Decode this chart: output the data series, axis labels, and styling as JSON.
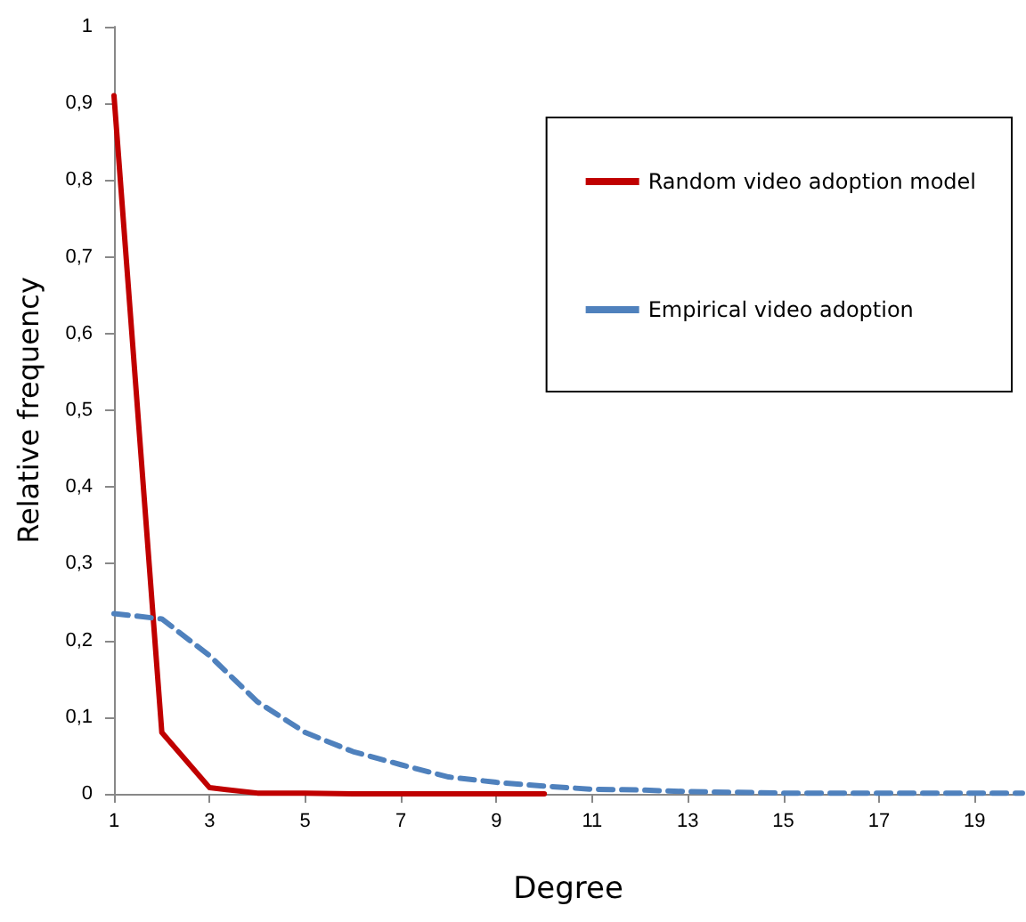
{
  "chart_data": {
    "type": "line",
    "xlabel": "Degree",
    "ylabel": "Relative frequency",
    "xlim": [
      1,
      20
    ],
    "xticks": [
      1,
      3,
      5,
      7,
      9,
      11,
      13,
      15,
      17,
      19
    ],
    "ylim": [
      0,
      1
    ],
    "yticks": [
      0,
      {
        "value": 0.1,
        "label": "0,1"
      },
      {
        "value": 0.2,
        "label": "0,2"
      },
      {
        "value": 0.3,
        "label": "0,3"
      },
      {
        "value": 0.4,
        "label": "0,4"
      },
      {
        "value": 0.5,
        "label": "0,5"
      },
      {
        "value": 0.6,
        "label": "0,6"
      },
      {
        "value": 0.7,
        "label": "0,7"
      },
      {
        "value": 0.8,
        "label": "0,8"
      },
      {
        "value": 0.9,
        "label": "0,9"
      },
      1
    ],
    "grid": false,
    "legend": "top right",
    "marker": "none",
    "series": [
      {
        "name": "Random video adoption model",
        "color": "#c00000",
        "line_style": "solid",
        "x": [
          1,
          2,
          3,
          4,
          5,
          6,
          7,
          8,
          9,
          10
        ],
        "values": [
          0.91,
          0.08,
          0.008,
          0.001,
          0.001,
          0,
          0,
          0,
          0,
          0
        ]
      },
      {
        "name": "Empirical video adoption",
        "color": "#4f81bd",
        "line_style": "dashed",
        "x": [
          1,
          2,
          3,
          4,
          5,
          6,
          7,
          8,
          9,
          10,
          11,
          12,
          13,
          14,
          15,
          16,
          17,
          18,
          19,
          20
        ],
        "values": [
          0.235,
          0.228,
          0.18,
          0.12,
          0.08,
          0.055,
          0.038,
          0.022,
          0.015,
          0.01,
          0.006,
          0.005,
          0.003,
          0.002,
          0.001,
          0.001,
          0.001,
          0.001,
          0.001,
          0.001
        ]
      }
    ]
  }
}
